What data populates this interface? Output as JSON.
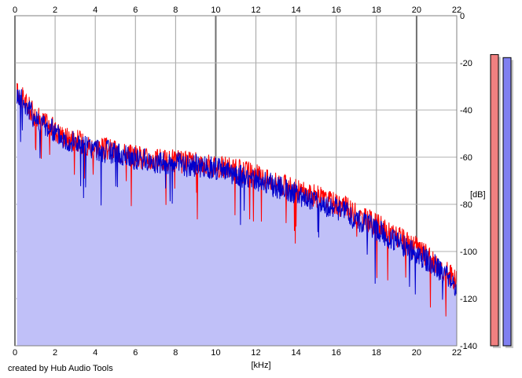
{
  "footer": {
    "credit": "created by Hub Audio Tools"
  },
  "meters": [
    {
      "name": "left-channel-level-meter",
      "color": "#f08080",
      "level_fraction": 0.96
    },
    {
      "name": "right-channel-level-meter",
      "color": "#8080f0",
      "level_fraction": 0.95
    }
  ],
  "chart_data": {
    "type": "line",
    "title": "",
    "xlabel": "[kHz]",
    "ylabel": "[dB]",
    "xlim": [
      0,
      22
    ],
    "ylim": [
      -140,
      0
    ],
    "x_ticks": [
      "0",
      "2",
      "4",
      "6",
      "8",
      "10",
      "12",
      "14",
      "16",
      "18",
      "20",
      "22"
    ],
    "y_ticks": [
      "0",
      "-20",
      "-40",
      "-60",
      "-80",
      "-100",
      "-120",
      "-140"
    ],
    "major_x_gridlines": [
      0,
      10,
      20
    ],
    "grid": true,
    "background_color": "#ffffff",
    "fill_color": "#c0c0f8",
    "series": [
      {
        "color": "#ff0000",
        "x": [
          0.1,
          0.5,
          1,
          1.5,
          2,
          2.5,
          3,
          3.5,
          4,
          4.5,
          5,
          5.5,
          6,
          6.5,
          7,
          7.5,
          8,
          8.5,
          9,
          9.5,
          10,
          10.5,
          11,
          11.5,
          12,
          12.5,
          13,
          13.5,
          14,
          14.5,
          15,
          15.5,
          16,
          16.5,
          17,
          17.5,
          18,
          18.5,
          19,
          19.5,
          20,
          20.5,
          21,
          21.5,
          22
        ],
        "values": [
          -32,
          -36,
          -42,
          -45,
          -48,
          -51,
          -52,
          -54,
          -55,
          -56,
          -57,
          -58,
          -59,
          -60,
          -61,
          -61,
          -61,
          -62,
          -62,
          -63,
          -63,
          -64,
          -65,
          -66,
          -67,
          -69,
          -70,
          -72,
          -73,
          -75,
          -76,
          -78,
          -79,
          -81,
          -84,
          -86,
          -88,
          -91,
          -93,
          -96,
          -98,
          -101,
          -105,
          -108,
          -112
        ]
      },
      {
        "color": "#0000cc",
        "x": [
          0.1,
          0.5,
          1,
          1.5,
          2,
          2.5,
          3,
          3.5,
          4,
          4.5,
          5,
          5.5,
          6,
          6.5,
          7,
          7.5,
          8,
          8.5,
          9,
          9.5,
          10,
          10.5,
          11,
          11.5,
          12,
          12.5,
          13,
          13.5,
          14,
          14.5,
          15,
          15.5,
          16,
          16.5,
          17,
          17.5,
          18,
          18.5,
          19,
          19.5,
          20,
          20.5,
          21,
          21.5,
          22
        ],
        "values": [
          -33,
          -37,
          -43,
          -46,
          -49,
          -52,
          -53,
          -55,
          -56,
          -57,
          -58,
          -59,
          -60,
          -61,
          -62,
          -62,
          -62,
          -63,
          -63,
          -64,
          -64,
          -66,
          -67,
          -68,
          -69,
          -70,
          -72,
          -73,
          -75,
          -77,
          -78,
          -80,
          -81,
          -83,
          -86,
          -88,
          -90,
          -93,
          -95,
          -98,
          -100,
          -103,
          -106,
          -110,
          -114
        ]
      }
    ]
  }
}
